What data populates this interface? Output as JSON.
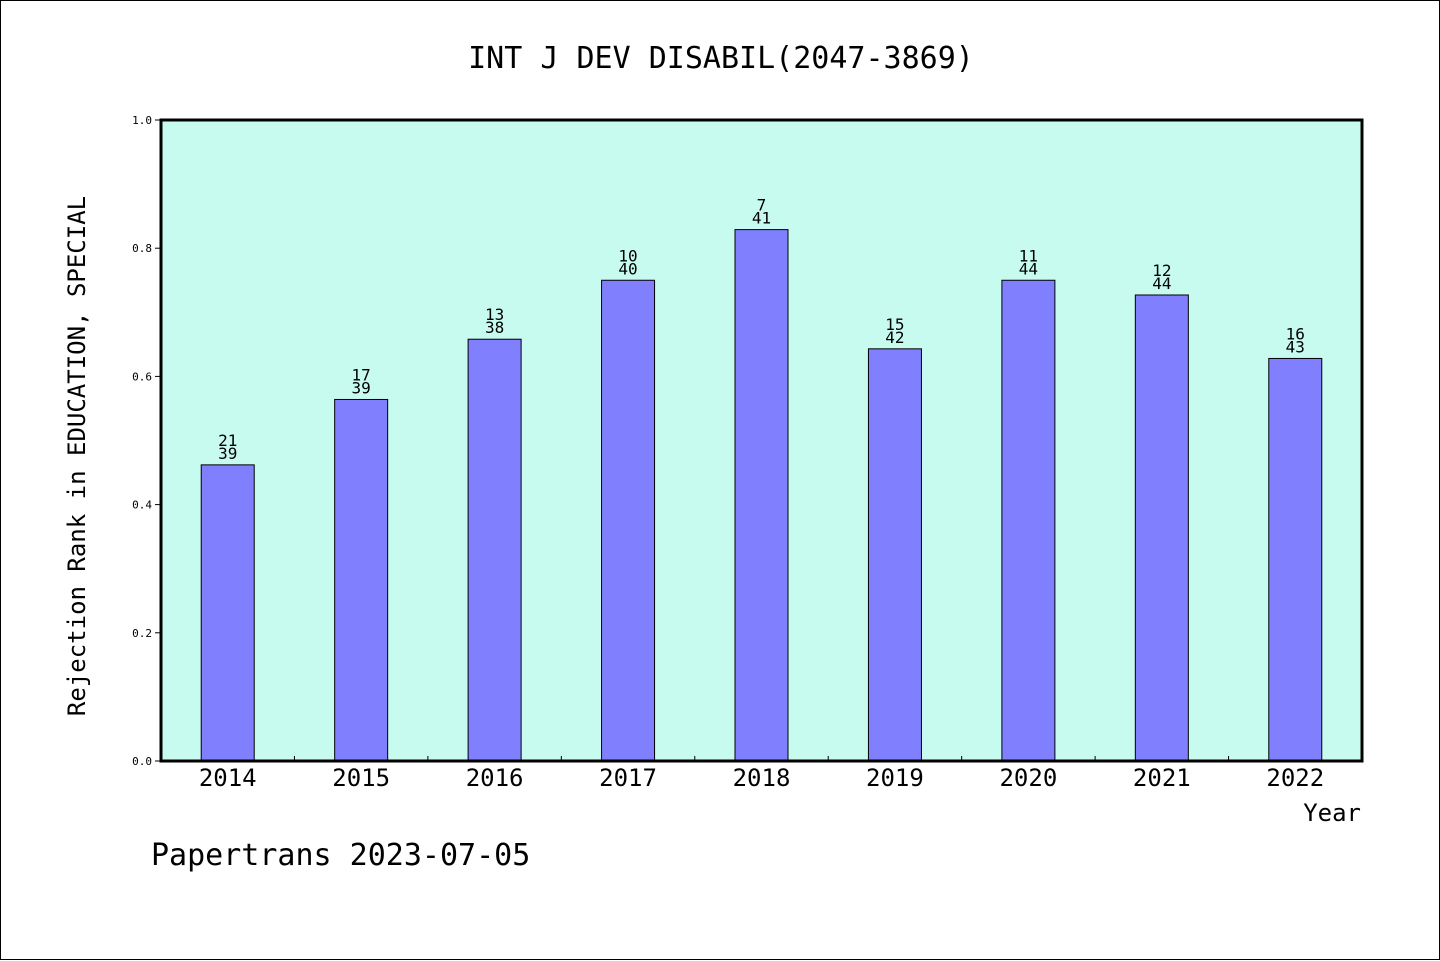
{
  "chart_data": {
    "type": "bar",
    "title": "INT J DEV DISABIL(2047-3869)",
    "xlabel": "Year",
    "ylabel": "Rejection Rank in EDUCATION, SPECIAL",
    "ylim": [
      0.0,
      1.0
    ],
    "yticks": [
      "0.0",
      "0.2",
      "0.4",
      "0.6",
      "0.8",
      "1.0"
    ],
    "categories": [
      "2014",
      "2015",
      "2016",
      "2017",
      "2018",
      "2019",
      "2020",
      "2021",
      "2022"
    ],
    "values": [
      0.462,
      0.564,
      0.658,
      0.75,
      0.829,
      0.643,
      0.75,
      0.727,
      0.628
    ],
    "rank": [
      "21",
      "17",
      "13",
      "10",
      "7",
      "15",
      "11",
      "12",
      "16"
    ],
    "total": [
      "39",
      "39",
      "38",
      "40",
      "41",
      "42",
      "44",
      "44",
      "43"
    ],
    "grid": false,
    "colors": {
      "plot_bg": "#c8fbef",
      "bar_fill": "#8080ff",
      "bar_stroke": "#000000"
    }
  },
  "footer": "Papertrans 2023-07-05"
}
